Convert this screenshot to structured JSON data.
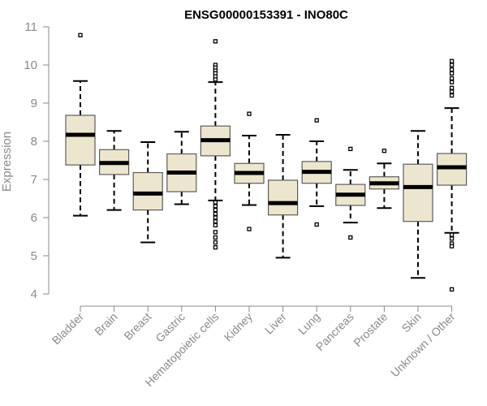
{
  "chart_data": {
    "type": "box",
    "title": "ENSG00000153391 - INO80C",
    "ylabel": "Expression",
    "xlabel": "",
    "ylim": [
      4,
      11
    ],
    "yticks": [
      4,
      5,
      6,
      7,
      8,
      9,
      10,
      11
    ],
    "grid": false,
    "legend": "none",
    "colors": {
      "box_fill": "#EDE6CE",
      "box_stroke": "#5c5c5c",
      "median": "#000000",
      "axis": "#8a8a8a",
      "title": "#000000"
    },
    "categories": [
      "Bladder",
      "Brain",
      "Breast",
      "Gastric",
      "Hematopoietic cells",
      "Kidney",
      "Liver",
      "Lung",
      "Pancreas",
      "Prostate",
      "Skin",
      "Unknown / Other"
    ],
    "boxes": [
      {
        "whisker_low": 6.05,
        "q1": 7.38,
        "median": 8.17,
        "q3": 8.68,
        "whisker_high": 9.58,
        "outliers": [
          10.78
        ]
      },
      {
        "whisker_low": 6.2,
        "q1": 7.13,
        "median": 7.43,
        "q3": 7.78,
        "whisker_high": 8.27,
        "outliers": []
      },
      {
        "whisker_low": 5.35,
        "q1": 6.2,
        "median": 6.63,
        "q3": 7.18,
        "whisker_high": 7.98,
        "outliers": []
      },
      {
        "whisker_low": 6.35,
        "q1": 6.68,
        "median": 7.18,
        "q3": 7.67,
        "whisker_high": 8.25,
        "outliers": []
      },
      {
        "whisker_low": 6.45,
        "q1": 7.62,
        "median": 8.03,
        "q3": 8.4,
        "whisker_high": 9.55,
        "outliers": [
          10.62,
          10.0,
          9.93,
          9.85,
          9.78,
          9.7,
          9.62,
          6.4,
          6.3,
          6.2,
          6.1,
          6.0,
          5.9,
          5.8,
          5.62,
          5.48,
          5.35,
          5.22
        ]
      },
      {
        "whisker_low": 6.33,
        "q1": 6.9,
        "median": 7.17,
        "q3": 7.42,
        "whisker_high": 8.15,
        "outliers": [
          8.72,
          5.7
        ]
      },
      {
        "whisker_low": 4.95,
        "q1": 6.07,
        "median": 6.38,
        "q3": 6.98,
        "whisker_high": 8.17,
        "outliers": []
      },
      {
        "whisker_low": 6.3,
        "q1": 6.9,
        "median": 7.2,
        "q3": 7.47,
        "whisker_high": 8.0,
        "outliers": [
          8.55,
          5.82
        ]
      },
      {
        "whisker_low": 5.87,
        "q1": 6.32,
        "median": 6.6,
        "q3": 6.87,
        "whisker_high": 7.25,
        "outliers": [
          7.8,
          5.48
        ]
      },
      {
        "whisker_low": 6.25,
        "q1": 6.75,
        "median": 6.9,
        "q3": 7.07,
        "whisker_high": 7.42,
        "outliers": [
          7.75
        ]
      },
      {
        "whisker_low": 4.42,
        "q1": 5.9,
        "median": 6.8,
        "q3": 7.4,
        "whisker_high": 8.27,
        "outliers": []
      },
      {
        "whisker_low": 5.6,
        "q1": 6.85,
        "median": 7.32,
        "q3": 7.68,
        "whisker_high": 8.87,
        "outliers": [
          10.1,
          10.0,
          9.88,
          9.78,
          9.65,
          9.55,
          9.4,
          9.3,
          9.2,
          5.55,
          5.45,
          5.32,
          5.25,
          4.12
        ]
      }
    ]
  }
}
